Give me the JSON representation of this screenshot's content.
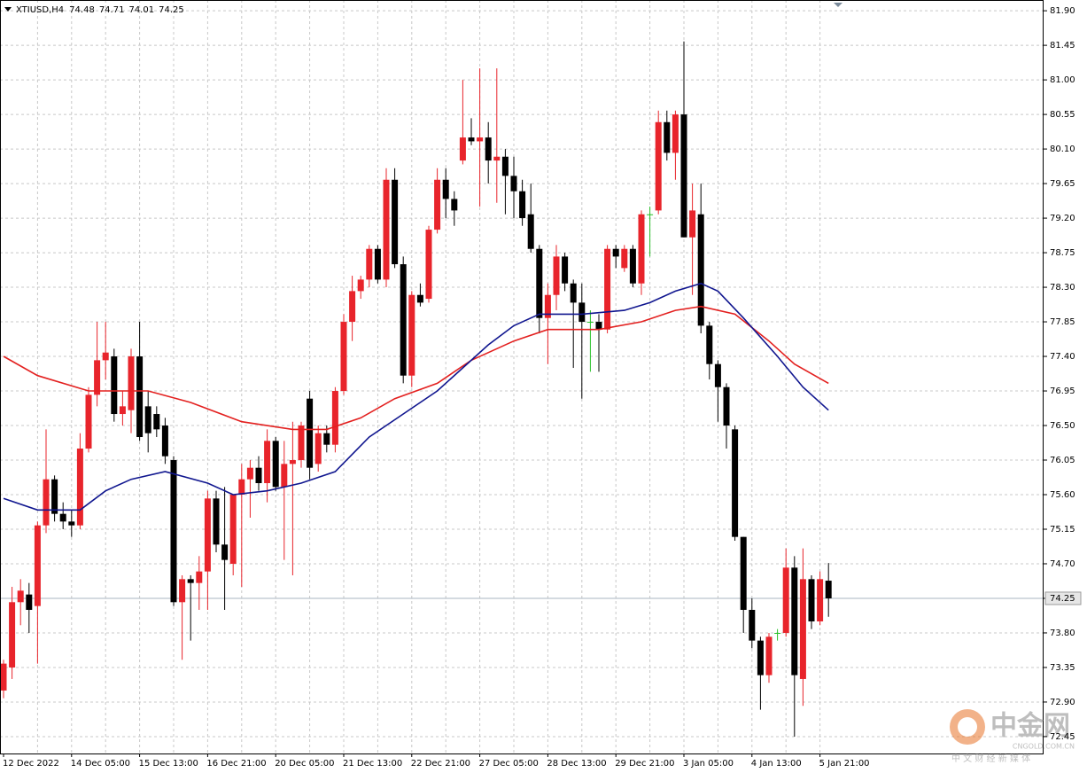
{
  "chart_data": {
    "type": "candlestick",
    "title": "XTIUSD,H4",
    "ohlc_label": [
      74.48,
      74.71,
      74.01,
      74.25
    ],
    "categories": [
      "12 Dec 2022",
      null,
      null,
      null,
      null,
      null,
      null,
      null,
      "14 Dec 05:00",
      null,
      null,
      null,
      null,
      null,
      null,
      null,
      "15 Dec 13:00",
      null,
      null,
      null,
      null,
      null,
      null,
      null,
      "16 Dec 21:00",
      null,
      null,
      null,
      null,
      null,
      null,
      null,
      "20 Dec 05:00",
      null,
      null,
      null,
      null,
      null,
      null,
      null,
      "21 Dec 13:00",
      null,
      null,
      null,
      null,
      null,
      null,
      null,
      "22 Dec 21:00",
      null,
      null,
      null,
      null,
      null,
      null,
      null,
      "27 Dec 05:00",
      null,
      null,
      null,
      null,
      null,
      null,
      null,
      "28 Dec 13:00",
      null,
      null,
      null,
      null,
      null,
      null,
      null,
      "29 Dec 21:00",
      null,
      null,
      null,
      null,
      null,
      null,
      null,
      "3 Jan 05:00",
      null,
      null,
      null,
      null,
      null,
      null,
      null,
      "4 Jan 13:00",
      null,
      null,
      null,
      null,
      null,
      null,
      null,
      "5 Jan 21:00",
      null
    ],
    "open": [
      73.05,
      73.35,
      74.2,
      74.3,
      74.15,
      75.2,
      75.8,
      75.35,
      75.25,
      75.2,
      76.2,
      76.9,
      77.35,
      77.4,
      76.65,
      76.7,
      77.4,
      76.75,
      76.65,
      76.5,
      76.05,
      74.2,
      74.5,
      74.45,
      74.6,
      75.55,
      74.95,
      74.7,
      75.6,
      75.8,
      75.95,
      75.75,
      76.3,
      75.7,
      76.0,
      76.05,
      76.85,
      76.0,
      76.4,
      76.25,
      76.95,
      77.85,
      78.25,
      78.4,
      78.8,
      78.4,
      79.7,
      78.6,
      77.15,
      78.2,
      78.15,
      79.05,
      79.7,
      79.45,
      79.95,
      80.25,
      80.2,
      80.25,
      79.95,
      80.0,
      79.75,
      79.55,
      79.25,
      78.8,
      77.9,
      78.2,
      78.7,
      78.35,
      78.1,
      77.85,
      77.85,
      77.75,
      78.8,
      78.55,
      78.8,
      78.35,
      79.25,
      79.3,
      80.45,
      80.05,
      80.55,
      78.95,
      79.25,
      77.8,
      77.3,
      77.0,
      76.45,
      75.05,
      74.1,
      73.7,
      73.25,
      73.8,
      73.8,
      74.65,
      73.2,
      74.5,
      73.95,
      74.48
    ],
    "high": [
      73.45,
      74.4,
      74.5,
      74.45,
      75.25,
      76.45,
      75.85,
      75.5,
      75.4,
      76.4,
      77.0,
      77.85,
      77.85,
      77.5,
      76.95,
      77.5,
      77.85,
      76.95,
      76.75,
      76.6,
      76.1,
      74.55,
      74.55,
      74.8,
      75.65,
      75.65,
      75.7,
      75.6,
      76.0,
      76.05,
      76.1,
      76.45,
      76.35,
      76.3,
      76.55,
      76.55,
      76.95,
      76.5,
      76.5,
      77.0,
      77.95,
      78.45,
      78.45,
      78.85,
      78.85,
      79.85,
      79.85,
      78.7,
      78.25,
      78.35,
      79.1,
      79.85,
      79.85,
      79.55,
      81.0,
      80.5,
      81.15,
      80.45,
      81.15,
      80.1,
      80.0,
      79.7,
      79.65,
      78.85,
      78.35,
      78.85,
      78.75,
      78.4,
      78.35,
      78.0,
      77.95,
      78.85,
      78.85,
      78.85,
      78.85,
      79.3,
      79.35,
      80.6,
      80.6,
      80.6,
      81.5,
      79.65,
      79.65,
      77.85,
      77.35,
      77.05,
      76.5,
      75.05,
      74.25,
      73.75,
      73.8,
      73.85,
      74.9,
      74.8,
      74.9,
      74.55,
      74.6,
      74.71
    ],
    "low": [
      72.95,
      73.2,
      73.9,
      73.8,
      73.4,
      75.1,
      75.25,
      75.15,
      75.05,
      75.15,
      76.15,
      76.75,
      77.1,
      76.55,
      76.5,
      76.4,
      76.3,
      76.15,
      76.35,
      76.0,
      74.15,
      73.45,
      73.7,
      74.1,
      74.1,
      74.85,
      74.1,
      74.55,
      74.4,
      75.3,
      75.65,
      75.5,
      75.65,
      74.75,
      74.55,
      75.95,
      75.8,
      75.9,
      76.15,
      76.15,
      76.9,
      77.6,
      78.15,
      78.3,
      78.35,
      78.3,
      78.55,
      77.05,
      77.0,
      78.05,
      78.1,
      79.0,
      79.2,
      79.1,
      79.9,
      80.15,
      79.35,
      79.65,
      79.4,
      79.25,
      79.2,
      79.1,
      78.75,
      77.7,
      77.3,
      78.0,
      78.25,
      77.25,
      76.85,
      77.2,
      77.2,
      77.7,
      78.55,
      78.5,
      78.3,
      78.2,
      78.7,
      79.25,
      79.95,
      79.7,
      78.95,
      78.2,
      77.7,
      77.1,
      76.55,
      76.2,
      75.0,
      73.8,
      73.6,
      72.8,
      73.15,
      73.7,
      73.75,
      72.45,
      72.85,
      73.85,
      73.9,
      74.01
    ],
    "close": [
      73.4,
      74.2,
      74.35,
      74.1,
      75.2,
      75.8,
      75.35,
      75.25,
      75.2,
      76.2,
      76.9,
      77.35,
      77.45,
      76.65,
      76.75,
      77.4,
      76.35,
      76.4,
      76.45,
      76.1,
      74.2,
      74.5,
      74.45,
      74.6,
      75.55,
      74.95,
      74.75,
      75.6,
      75.8,
      75.95,
      75.75,
      76.3,
      75.7,
      76.0,
      76.05,
      76.5,
      75.95,
      76.4,
      76.25,
      76.95,
      77.85,
      78.25,
      78.4,
      78.8,
      78.4,
      79.7,
      78.6,
      77.15,
      78.2,
      78.1,
      79.05,
      79.7,
      79.45,
      79.3,
      80.25,
      80.2,
      80.25,
      79.95,
      80.0,
      79.75,
      79.55,
      79.2,
      78.8,
      77.9,
      78.2,
      78.7,
      78.35,
      78.1,
      77.85,
      77.85,
      77.75,
      78.8,
      78.7,
      78.8,
      78.35,
      79.25,
      79.25,
      80.45,
      80.05,
      80.55,
      78.95,
      79.3,
      77.8,
      77.3,
      77.0,
      76.5,
      75.05,
      74.1,
      73.7,
      73.25,
      73.75,
      73.8,
      74.65,
      73.25,
      74.5,
      73.95,
      74.5,
      74.25
    ],
    "up_color": "#e8242b",
    "down_color": "#000000",
    "doji_color": "#26c126",
    "lines": [
      {
        "color": "#e3201f",
        "x": [
          0,
          4,
          10,
          17,
          22,
          28,
          34,
          38,
          42,
          46,
          51,
          55,
          60,
          64,
          70,
          75,
          79,
          82,
          86,
          90,
          93,
          97
        ],
        "values": [
          77.4,
          77.15,
          76.95,
          76.95,
          76.8,
          76.55,
          76.45,
          76.45,
          76.6,
          76.85,
          77.05,
          77.35,
          77.6,
          77.75,
          77.75,
          77.85,
          78.0,
          78.05,
          77.95,
          77.6,
          77.3,
          77.05
        ]
      },
      {
        "color": "#10168f",
        "x": [
          0,
          4,
          9,
          12,
          15,
          19,
          24,
          27,
          31,
          35,
          39,
          43,
          47,
          51,
          54,
          57,
          60,
          63,
          68,
          73,
          76,
          79,
          82,
          84,
          87,
          91,
          94,
          97
        ],
        "values": [
          75.55,
          75.4,
          75.4,
          75.65,
          75.8,
          75.9,
          75.75,
          75.6,
          75.65,
          75.75,
          75.9,
          76.35,
          76.65,
          76.95,
          77.25,
          77.55,
          77.8,
          77.95,
          77.95,
          78.0,
          78.1,
          78.25,
          78.35,
          78.25,
          77.9,
          77.4,
          77.0,
          76.7
        ]
      }
    ],
    "last_price": {
      "value": 74.25,
      "label": "74.25"
    },
    "ylim": [
      72.23,
      82.04
    ],
    "yticks": [
      {
        "value": 81.9,
        "label": "81.90"
      },
      81.45,
      {
        "value": 81,
        "label": "81.00"
      },
      80.55,
      {
        "value": 80.1,
        "label": "80.10"
      },
      79.65,
      {
        "value": 79.2,
        "label": "79.20"
      },
      78.75,
      {
        "value": 78.3,
        "label": "78.30"
      },
      77.85,
      {
        "value": 77.4,
        "label": "77.40"
      },
      76.95,
      {
        "value": 76.5,
        "label": "76.50"
      },
      {
        "value": 76.05,
        "label": "76.05"
      },
      {
        "value": 75.6,
        "label": "75.60"
      },
      75.15,
      {
        "value": 74.7,
        "label": "74.70"
      },
      {
        "value": 74.25,
        "label": "74.25"
      },
      {
        "value": 73.8,
        "label": "73.80"
      },
      73.35,
      {
        "value": 72.9,
        "label": "72.90"
      },
      72.45
    ],
    "grid": true,
    "watermark": {
      "logo": "中金网",
      "site": "CNGOLD.COM.CN",
      "slogan": "中 文 财 经 新 媒 体"
    }
  }
}
